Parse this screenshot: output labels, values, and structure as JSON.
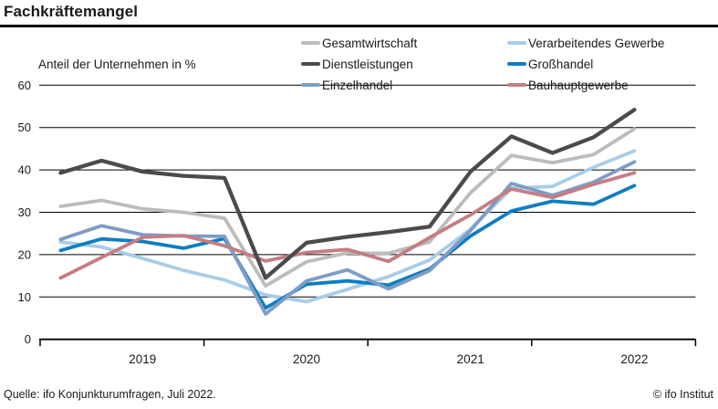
{
  "page": {
    "title": "Fachkräftemangel",
    "source": "Quelle: ifo Konjunkturumfragen, Juli 2022.",
    "copyright": "© ifo Institut"
  },
  "chart_data": {
    "type": "line",
    "title": "Fachkräftemangel",
    "subtitle": "Anteil der Unternehmen in %",
    "xlabel": "",
    "ylabel": "Anteil der Unternehmen in %",
    "ylim": [
      0,
      60
    ],
    "ystep": 10,
    "grid": true,
    "x_unit": "quarter",
    "x": [
      "2019-Q1",
      "2019-Q2",
      "2019-Q3",
      "2019-Q4",
      "2020-Q1",
      "2020-Q2",
      "2020-Q3",
      "2020-Q4",
      "2021-Q1",
      "2021-Q2",
      "2021-Q3",
      "2021-Q4",
      "2022-Q1",
      "2022-Q2",
      "2022-Q3"
    ],
    "year_labels": [
      "2019",
      "2020",
      "2021",
      "2022"
    ],
    "y_tick_labels": [
      "0",
      "10",
      "20",
      "30",
      "40",
      "50",
      "60"
    ],
    "series": [
      {
        "name": "Gesamtwirtschaft",
        "color": "#bcbcbc",
        "values": [
          31.4,
          32.8,
          30.8,
          30.0,
          28.6,
          12.6,
          18.3,
          20.4,
          20.3,
          23.0,
          34.6,
          43.4,
          41.7,
          43.6,
          49.7
        ]
      },
      {
        "name": "Verarbeitendes Gewerbe",
        "color": "#a9cde8",
        "values": [
          23.0,
          21.8,
          19.1,
          16.3,
          14.0,
          10.5,
          8.9,
          11.8,
          14.8,
          18.7,
          26.0,
          35.7,
          36.1,
          40.6,
          44.5
        ]
      },
      {
        "name": "Großhandel",
        "color": "#0e7ec2",
        "values": [
          21.0,
          23.7,
          23.1,
          21.5,
          23.8,
          7.4,
          13.0,
          13.8,
          12.8,
          16.6,
          24.4,
          30.3,
          32.6,
          31.9,
          36.3
        ]
      },
      {
        "name": "Einzelhandel",
        "color": "#7f9cc5",
        "values": [
          23.6,
          26.8,
          24.7,
          24.4,
          24.3,
          6.0,
          13.8,
          16.4,
          11.9,
          16.2,
          25.7,
          36.8,
          34.0,
          37.1,
          41.9
        ]
      },
      {
        "name": "Bauhauptgewerbe",
        "color": "#c47d83",
        "values": [
          14.5,
          19.3,
          24.1,
          24.5,
          22.1,
          18.5,
          20.5,
          21.2,
          18.4,
          24.0,
          29.4,
          35.5,
          33.5,
          36.6,
          39.3
        ]
      },
      {
        "name": "Dienstleistungen",
        "color": "#4b4b4d",
        "values": [
          39.3,
          42.2,
          39.6,
          38.6,
          38.1,
          14.5,
          22.8,
          24.2,
          25.3,
          26.6,
          39.6,
          47.9,
          44.0,
          47.7,
          54.2
        ]
      }
    ],
    "legend_rows": [
      [
        "Gesamtwirtschaft",
        "Verarbeitendes Gewerbe"
      ],
      [
        "Dienstleistungen",
        "Großhandel"
      ],
      [
        "Einzelhandel",
        "Bauhauptgewerbe"
      ]
    ],
    "legend_position": "top-right"
  }
}
